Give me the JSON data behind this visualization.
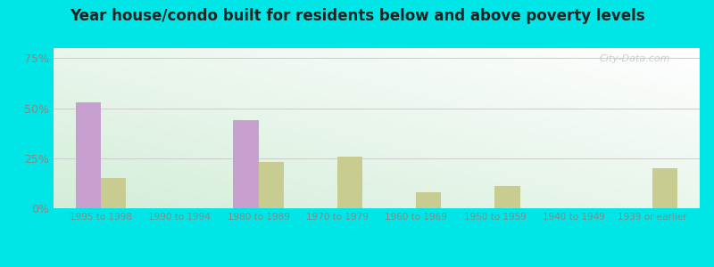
{
  "title": "Year house/condo built for residents below and above poverty levels",
  "categories": [
    "1995 to 1998",
    "1990 to 1994",
    "1980 to 1989",
    "1970 to 1979",
    "1960 to 1969",
    "1950 to 1959",
    "1940 to 1949",
    "1939 or earlier"
  ],
  "below_poverty": [
    53,
    0,
    44,
    0,
    0,
    0,
    0,
    0
  ],
  "above_poverty": [
    15,
    0,
    23,
    26,
    8,
    11,
    0,
    20
  ],
  "below_color": "#c8a0d0",
  "above_color": "#c8cc90",
  "yticks": [
    0,
    25,
    50,
    75
  ],
  "ylim": [
    0,
    80
  ],
  "outer_background": "#00e5e5",
  "bar_width": 0.32,
  "title_fontsize": 12,
  "watermark": "City-Data.com"
}
